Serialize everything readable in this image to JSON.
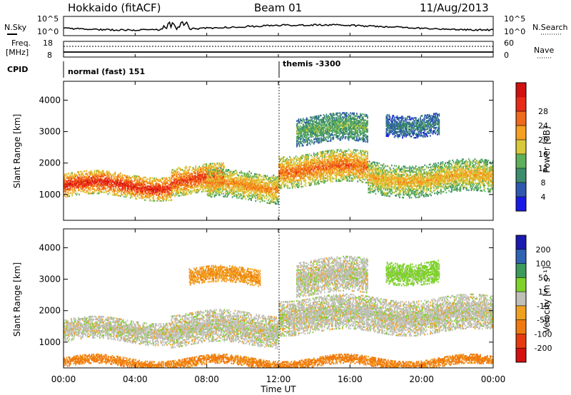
{
  "header": {
    "station": "Hokkaido (fitACF)",
    "beam": "Beam 01",
    "date": "11/Aug/2013"
  },
  "noise_panel": {
    "left_label": "N.Sky",
    "right_label": "N.Search",
    "left_ticks": [
      "10^5",
      "10^0"
    ],
    "right_ticks": [
      "10^5",
      "10^0"
    ]
  },
  "freq_panel": {
    "left_label_1": "Freq.",
    "left_label_2": "[MHz]",
    "left_ticks": [
      "18",
      "8"
    ],
    "right_label": "Nave",
    "right_ticks": [
      "60",
      "0"
    ]
  },
  "cpid_panel": {
    "label": "CPID",
    "modes": [
      {
        "name": "normal (fast) 151",
        "start_hour": 0
      },
      {
        "name": "themis -3300",
        "start_hour": 12
      }
    ]
  },
  "axes": {
    "x_ticks": [
      "00:00",
      "04:00",
      "08:00",
      "12:00",
      "16:00",
      "20:00",
      "00:00"
    ],
    "x_label": "Time UT",
    "y_ticks": [
      "1000",
      "2000",
      "3000",
      "4000"
    ],
    "y_label": "Slant Range [km]"
  },
  "power_colorbar": {
    "title": "Power [dB]",
    "ticks": [
      "4",
      "8",
      "12",
      "16",
      "20",
      "24",
      "28"
    ],
    "colors": [
      "#1a1ae6",
      "#2f59b0",
      "#3c8c6e",
      "#5fb05a",
      "#d7c93a",
      "#f5a020",
      "#ef6a1c",
      "#e82a18",
      "#d11010"
    ]
  },
  "velocity_colorbar": {
    "title": "Velocity [m s⁻¹]",
    "ticks": [
      "200",
      "100",
      "50",
      "15",
      "-15",
      "-50",
      "-100",
      "-200"
    ],
    "colors": [
      "#1a1ab0",
      "#2f63b4",
      "#3c9a5a",
      "#7ed22a",
      "#c0c0b8",
      "#f0a020",
      "#f07a10",
      "#e83a10",
      "#d41010"
    ]
  },
  "chart_data": [
    {
      "type": "heatmap",
      "title": "Power [dB]",
      "xlabel": "Time UT",
      "ylabel": "Slant Range [km]",
      "xlim": [
        0,
        24
      ],
      "ylim": [
        180,
        4600
      ],
      "zlim": [
        0,
        30
      ],
      "echo_bands": [
        {
          "from_hour": 0,
          "to_hour": 6,
          "range_km": [
            900,
            1650
          ],
          "power_db": 26
        },
        {
          "from_hour": 6,
          "to_hour": 9,
          "range_km": [
            1000,
            1900
          ],
          "power_db": 24
        },
        {
          "from_hour": 8,
          "to_hour": 12,
          "range_km": [
            800,
            1700
          ],
          "power_db": 20
        },
        {
          "from_hour": 12,
          "to_hour": 17,
          "range_km": [
            1300,
            2300
          ],
          "power_db": 22
        },
        {
          "from_hour": 17,
          "to_hour": 24,
          "range_km": [
            1000,
            2000
          ],
          "power_db": 18
        },
        {
          "from_hour": 13,
          "to_hour": 17,
          "range_km": [
            2600,
            3500
          ],
          "power_db": 12
        },
        {
          "from_hour": 18,
          "to_hour": 21,
          "range_km": [
            2900,
            3600
          ],
          "power_db": 8
        }
      ]
    },
    {
      "type": "heatmap",
      "title": "Velocity [m s-1]",
      "xlabel": "Time UT",
      "ylabel": "Slant Range [km]",
      "xlim": [
        0,
        24
      ],
      "ylim": [
        180,
        4600
      ],
      "zlim": [
        -250,
        250
      ],
      "echo_bands": [
        {
          "from_hour": 0,
          "to_hour": 6,
          "range_km": [
            1000,
            1700
          ],
          "velocity": 0
        },
        {
          "from_hour": 6,
          "to_hour": 12,
          "range_km": [
            900,
            1900
          ],
          "velocity": 0
        },
        {
          "from_hour": 12,
          "to_hour": 24,
          "range_km": [
            1300,
            2400
          ],
          "velocity": 0
        },
        {
          "from_hour": 13,
          "to_hour": 17,
          "range_km": [
            2500,
            3600
          ],
          "velocity": 0
        },
        {
          "from_hour": 18,
          "to_hour": 21,
          "range_km": [
            2900,
            3600
          ],
          "velocity": 30
        },
        {
          "from_hour": 7,
          "to_hour": 11,
          "range_km": [
            2800,
            3300
          ],
          "velocity": -40
        },
        {
          "from_hour": 0,
          "to_hour": 24,
          "range_km": [
            200,
            500
          ],
          "velocity": -60
        }
      ]
    }
  ]
}
